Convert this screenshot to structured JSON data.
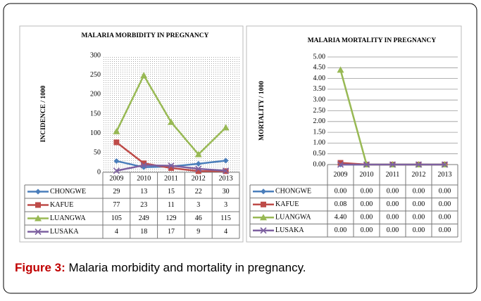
{
  "chart_data": [
    {
      "type": "line",
      "title": "MALARIA  MORBIDITY IN PREGNANCY",
      "y_label": "INCIDENCE / 1000",
      "categories": [
        "2009",
        "2010",
        "2011",
        "2012",
        "2013"
      ],
      "ylim": [
        0,
        300
      ],
      "yticks": [
        0,
        50,
        100,
        150,
        200,
        250,
        300
      ],
      "grid": false,
      "series": [
        {
          "name": "CHONGWE",
          "color": "#4a7ebb",
          "marker": "diamond",
          "values": [
            29,
            13,
            15,
            22,
            30
          ]
        },
        {
          "name": "KAFUE",
          "color": "#be4b48",
          "marker": "square",
          "values": [
            77,
            23,
            11,
            3,
            3
          ]
        },
        {
          "name": "LUANGWA",
          "color": "#98b954",
          "marker": "triangle",
          "values": [
            105,
            249,
            129,
            46,
            115
          ]
        },
        {
          "name": "LUSAKA",
          "color": "#7d60a0",
          "marker": "x",
          "values": [
            4,
            18,
            17,
            9,
            4
          ]
        }
      ]
    },
    {
      "type": "line",
      "title": "MALARIA  MORTALITY  IN PREGNANCY",
      "y_label": "MORTALITY / 1000",
      "categories": [
        "2009",
        "2010",
        "2011",
        "2012",
        "2013"
      ],
      "ylim": [
        0,
        5
      ],
      "grid": true,
      "yticks": [
        {
          "value": 0,
          "label": "0.00"
        },
        {
          "value": 0.5,
          "label": "0.50"
        },
        {
          "value": 1,
          "label": "1.00"
        },
        {
          "value": 1.5,
          "label": "1.50"
        },
        {
          "value": 2,
          "label": "2.00"
        },
        {
          "value": 2.5,
          "label": "2.50"
        },
        {
          "value": 3,
          "label": "3.00"
        },
        {
          "value": 3.5,
          "label": "3.50"
        },
        {
          "value": 4,
          "label": "4.00"
        },
        {
          "value": 4.5,
          "label": "4.50"
        },
        {
          "value": 5,
          "label": "5.00"
        }
      ],
      "series": [
        {
          "name": "CHONGWE",
          "color": "#4a7ebb",
          "marker": "diamond",
          "values": [
            0,
            0,
            0,
            0,
            0
          ],
          "value_labels": [
            "0.00",
            "0.00",
            "0.00",
            "0.00",
            "0.00"
          ]
        },
        {
          "name": "KAFUE",
          "color": "#be4b48",
          "marker": "square",
          "values": [
            0.08,
            0,
            0,
            0,
            0
          ],
          "value_labels": [
            "0.08",
            "0.00",
            "0.00",
            "0.00",
            "0.00"
          ]
        },
        {
          "name": "LUANGWA",
          "color": "#98b954",
          "marker": "triangle",
          "values": [
            4.4,
            0,
            0,
            0,
            0
          ],
          "value_labels": [
            "4.40",
            "0.00",
            "0.00",
            "0.00",
            "0.00"
          ]
        },
        {
          "name": "LUSAKA",
          "color": "#7d60a0",
          "marker": "x",
          "values": [
            0,
            0,
            0,
            0,
            0
          ],
          "value_labels": [
            "0.00",
            "0.00",
            "0.00",
            "0.00",
            "0.00"
          ]
        }
      ]
    }
  ],
  "caption": {
    "label": "Figure 3:",
    "text": "Malaria morbidity and mortality in pregnancy."
  }
}
